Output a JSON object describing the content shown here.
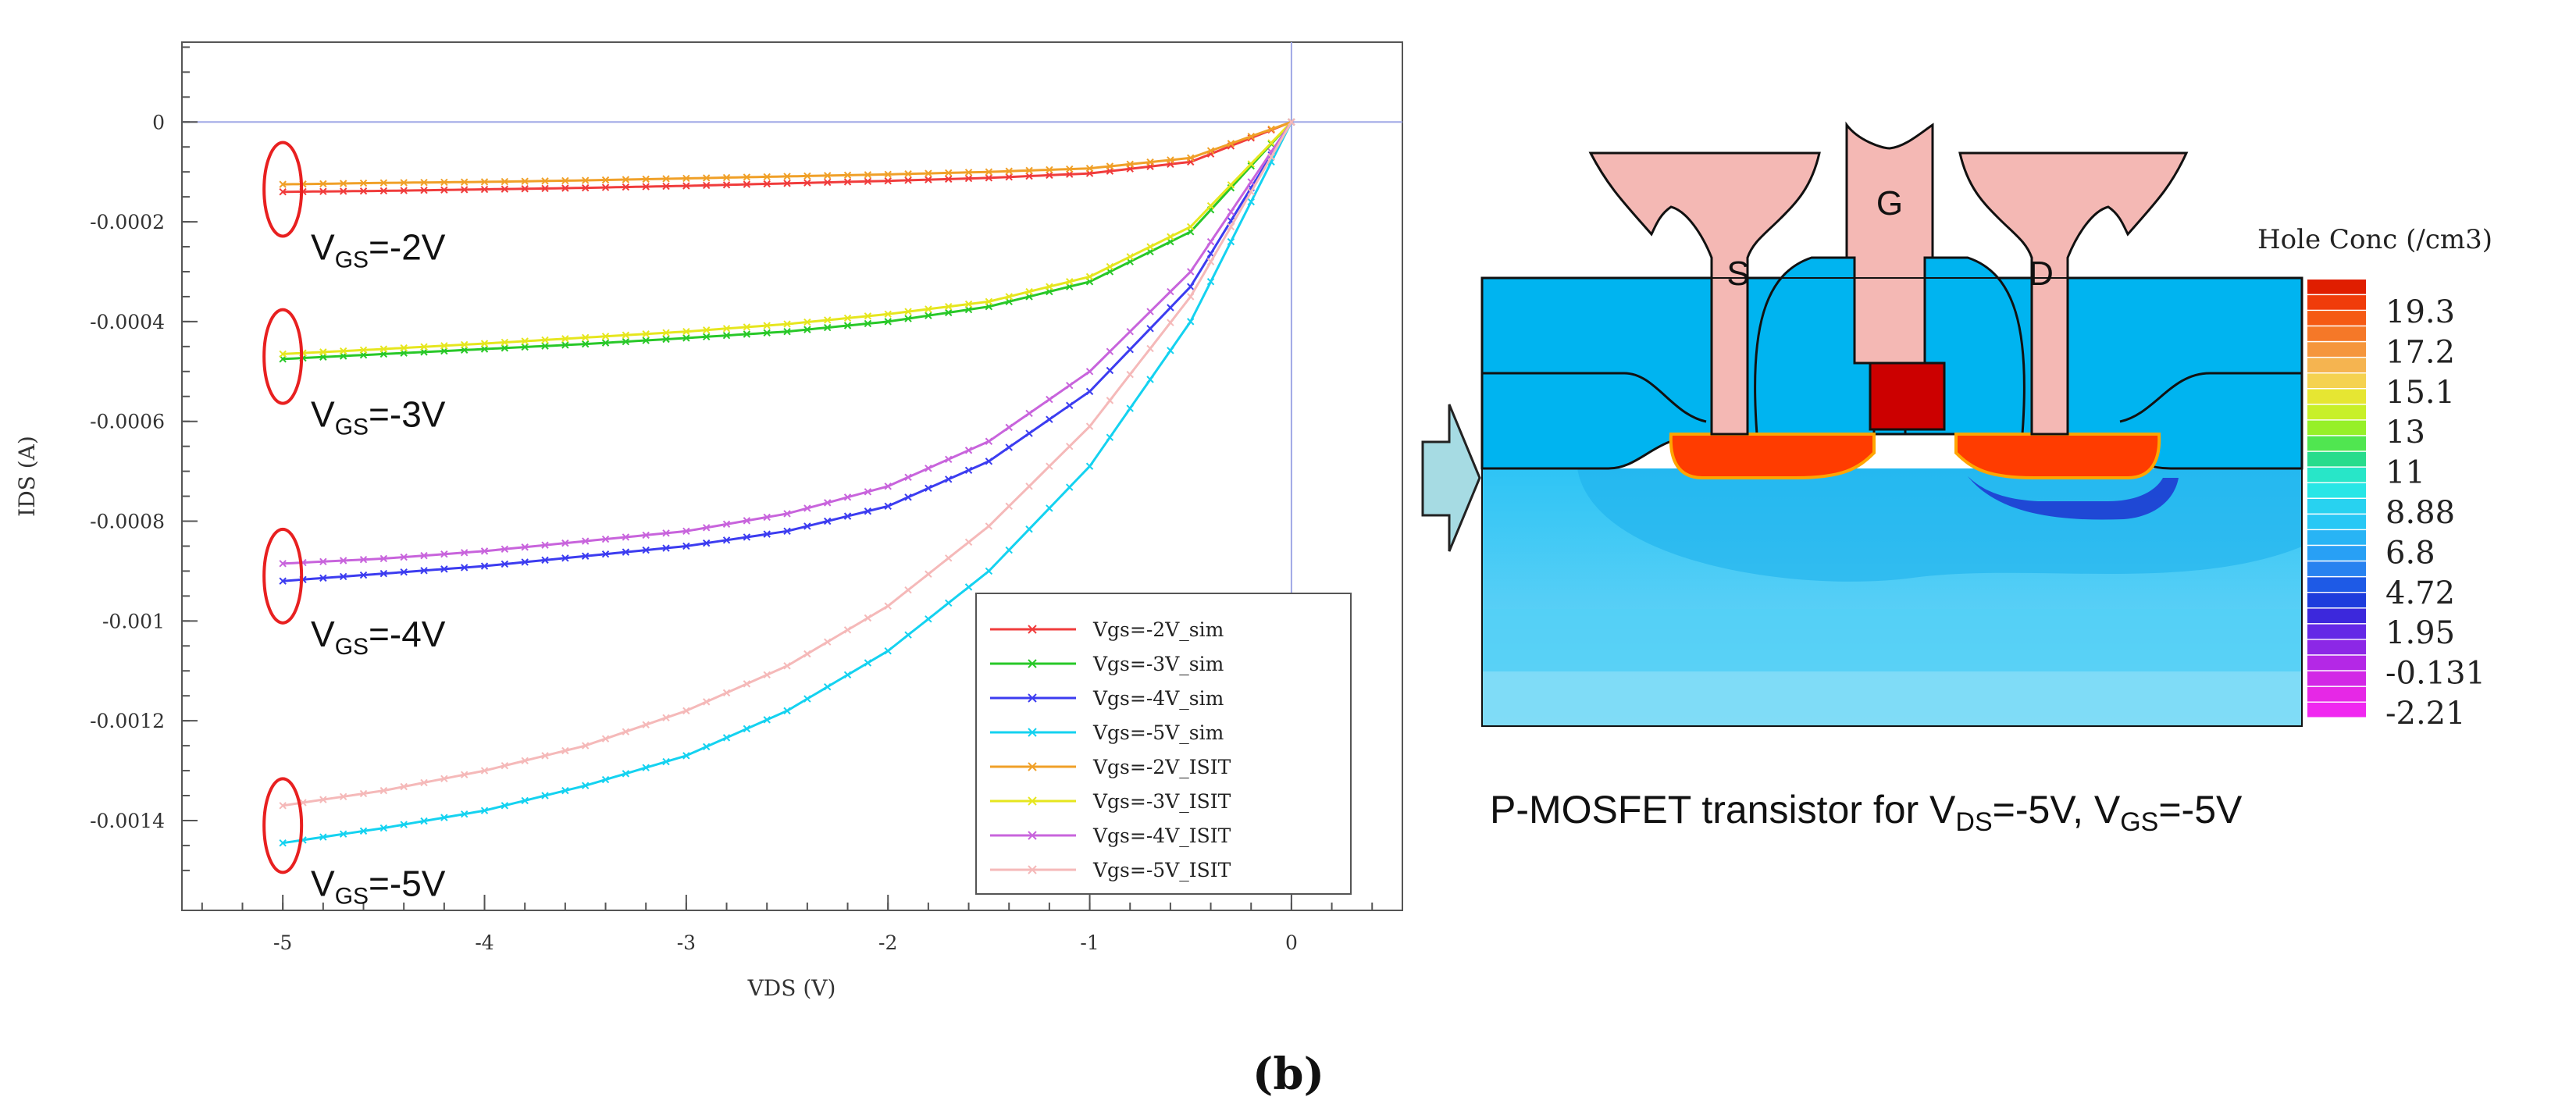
{
  "figure_label": "(b)",
  "chart_data": {
    "type": "line",
    "xlabel": "VDS (V)",
    "ylabel": "IDS (A)",
    "xlim": [
      -5.5,
      0.55
    ],
    "ylim": [
      -0.00158,
      0.00016
    ],
    "xticks": [
      -5,
      -4,
      -3,
      -2,
      -1,
      0
    ],
    "xtick_labels": [
      "-5",
      "-4",
      "-3",
      "-2",
      "-1",
      "0"
    ],
    "yticks": [
      0,
      -0.0002,
      -0.0004,
      -0.0006,
      -0.0008,
      -0.001,
      -0.0012,
      -0.0014
    ],
    "ytick_labels": [
      "0",
      "-0.0002",
      "-0.0004",
      "-0.0006",
      "-0.0008",
      "-0.001",
      "-0.0012",
      "-0.0014"
    ],
    "x": [
      -5,
      -4.5,
      -4,
      -3.5,
      -3,
      -2.5,
      -2,
      -1.5,
      -1,
      -0.5,
      0
    ],
    "series": [
      {
        "name": "Vgs=-2V_sim",
        "color": "#f03c3c",
        "values": [
          -0.00014,
          -0.000138,
          -0.000135,
          -0.000132,
          -0.000128,
          -0.000123,
          -0.000118,
          -0.000112,
          -0.000103,
          -8e-05,
          0
        ]
      },
      {
        "name": "Vgs=-3V_sim",
        "color": "#28c828",
        "values": [
          -0.000475,
          -0.000465,
          -0.000455,
          -0.000445,
          -0.000433,
          -0.00042,
          -0.0004,
          -0.00037,
          -0.00032,
          -0.00022,
          0
        ]
      },
      {
        "name": "Vgs=-4V_sim",
        "color": "#3c3cf0",
        "values": [
          -0.00092,
          -0.000905,
          -0.00089,
          -0.00087,
          -0.00085,
          -0.00082,
          -0.00077,
          -0.00068,
          -0.00054,
          -0.00033,
          0
        ]
      },
      {
        "name": "Vgs=-5V_sim",
        "color": "#14d2f0",
        "values": [
          -0.001445,
          -0.001415,
          -0.00138,
          -0.00133,
          -0.00127,
          -0.00118,
          -0.00106,
          -0.0009,
          -0.00069,
          -0.0004,
          0
        ]
      },
      {
        "name": "Vgs=-2V_ISIT",
        "color": "#f0a028",
        "values": [
          -0.000125,
          -0.000122,
          -0.00012,
          -0.000117,
          -0.000113,
          -0.000109,
          -0.000105,
          -0.0001,
          -9.3e-05,
          -7.2e-05,
          0
        ]
      },
      {
        "name": "Vgs=-3V_ISIT",
        "color": "#e6e61e",
        "values": [
          -0.000465,
          -0.000455,
          -0.000444,
          -0.000432,
          -0.00042,
          -0.000405,
          -0.000385,
          -0.00036,
          -0.00031,
          -0.00021,
          0
        ]
      },
      {
        "name": "Vgs=-4V_ISIT",
        "color": "#c864dc",
        "values": [
          -0.000885,
          -0.000875,
          -0.00086,
          -0.00084,
          -0.00082,
          -0.000785,
          -0.00073,
          -0.00064,
          -0.0005,
          -0.0003,
          0
        ]
      },
      {
        "name": "Vgs=-5V_ISIT",
        "color": "#f5b9b9",
        "values": [
          -0.00137,
          -0.00134,
          -0.0013,
          -0.00125,
          -0.00118,
          -0.00109,
          -0.00097,
          -0.00081,
          -0.00061,
          -0.00035,
          0
        ]
      }
    ],
    "vgs_annotations": [
      {
        "base": "V",
        "sub": "GS",
        "rest": "=-2V",
        "y": -0.000135
      },
      {
        "base": "V",
        "sub": "GS",
        "rest": "=-3V",
        "y": -0.00047
      },
      {
        "base": "V",
        "sub": "GS",
        "rest": "=-4V",
        "y": -0.00091
      },
      {
        "base": "V",
        "sub": "GS",
        "rest": "=-5V",
        "y": -0.00141
      }
    ]
  },
  "device": {
    "labels": {
      "source": "S",
      "gate": "G",
      "drain": "D"
    },
    "colorbar_title": "Hole Conc (/cm3)",
    "colorbar_values": [
      "19.3",
      "17.2",
      "15.1",
      "13",
      "11",
      "8.88",
      "6.8",
      "4.72",
      "1.95",
      "-0.131",
      "-2.21"
    ],
    "colors": {
      "contact": "#f4b8b4",
      "oxide": "#00b4f0",
      "substrate_mid": "#30c8f5",
      "substrate_light": "#78dcf6",
      "gate_poly": "#cc0000",
      "pplus": "#ff3c00",
      "depletion": "#1e3cd2",
      "arrow": "#a6dbe3"
    },
    "caption": {
      "prefix": "P-MOSFET transistor for V",
      "sub1": "DS",
      "mid": "=-5V, V",
      "sub2": "GS",
      "suffix": "=-5V"
    }
  }
}
